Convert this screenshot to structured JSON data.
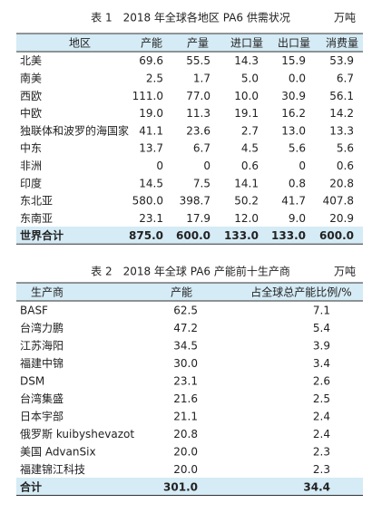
{
  "table1": {
    "title": "表 1　2018 年全球各地区 PA6 供需状况",
    "unit": "万吨",
    "header": [
      "地区",
      "产能",
      "产量",
      "进口量",
      "出口量",
      "消费量"
    ],
    "rows": [
      [
        "北美",
        "69.6",
        "55.5",
        "14.3",
        "15.9",
        "53.9"
      ],
      [
        "南美",
        "2.5",
        "1.7",
        "5.0",
        "0.0",
        "6.7"
      ],
      [
        "西欧",
        "111.0",
        "77.0",
        "10.0",
        "30.9",
        "56.1"
      ],
      [
        "中欧",
        "19.0",
        "11.3",
        "19.1",
        "16.2",
        "14.2"
      ],
      [
        "独联体和波罗的海国家",
        "41.1",
        "23.6",
        "2.7",
        "13.0",
        "13.3"
      ],
      [
        "中东",
        "13.7",
        "6.7",
        "4.5",
        "5.6",
        "5.6"
      ],
      [
        "非洲",
        "0",
        "0",
        "0.6",
        "0",
        "0.6"
      ],
      [
        "印度",
        "14.5",
        "7.5",
        "14.1",
        "0.8",
        "20.8"
      ],
      [
        "东北亚",
        "580.0",
        "398.7",
        "50.2",
        "41.7",
        "407.8"
      ],
      [
        "东南亚",
        "23.1",
        "17.9",
        "12.0",
        "9.0",
        "20.9"
      ],
      [
        "世界合计",
        "875.0",
        "600.0",
        "133.0",
        "133.0",
        "600.0"
      ]
    ]
  },
  "table2": {
    "title": "表 2　2018 年全球 PA6 产能前十生产商",
    "unit": "万吨",
    "header": [
      "生产商",
      "产能",
      "占全球总产能比例/%"
    ],
    "rows": [
      [
        "BASF",
        "62.5",
        "7.1"
      ],
      [
        "台湾力鹏",
        "47.2",
        "5.4"
      ],
      [
        "江苏海阳",
        "34.5",
        "3.9"
      ],
      [
        "福建中锦",
        "30.0",
        "3.4"
      ],
      [
        "DSM",
        "23.1",
        "2.6"
      ],
      [
        "台湾集盛",
        "21.6",
        "2.5"
      ],
      [
        "日本宇部",
        "21.1",
        "2.4"
      ],
      [
        "俄罗斯 kuibyshevazot",
        "20.8",
        "2.4"
      ],
      [
        "美国 AdvanSix",
        "20.0",
        "2.3"
      ],
      [
        "福建锦江科技",
        "20.0",
        "2.3"
      ],
      [
        "合计",
        "301.0",
        "34.4"
      ]
    ]
  }
}
